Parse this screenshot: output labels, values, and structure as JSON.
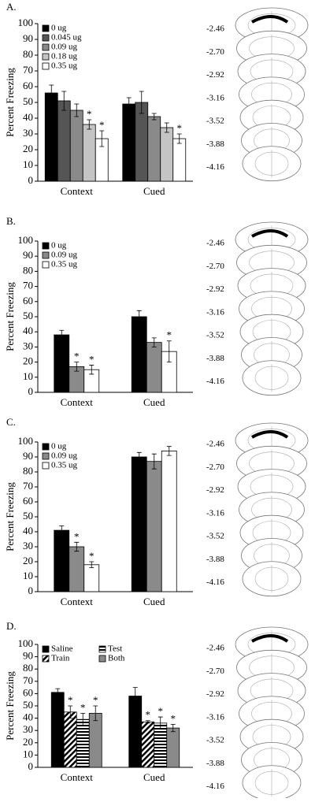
{
  "chart_data": [
    {
      "type": "bar",
      "panel_label": "A.",
      "ylabel": "Percent Freezing",
      "categories": [
        "Context",
        "Cued"
      ],
      "ylim": [
        0,
        100
      ],
      "yticks": [
        0,
        10,
        20,
        30,
        40,
        50,
        60,
        70,
        80,
        90,
        100
      ],
      "series": [
        {
          "name": "0 ug",
          "color": "#000000",
          "values": [
            56,
            49
          ],
          "errors": [
            5,
            4
          ]
        },
        {
          "name": "0.045 ug",
          "color": "#555555",
          "values": [
            51,
            50
          ],
          "errors": [
            6,
            7
          ]
        },
        {
          "name": "0.09 ug",
          "color": "#8a8a8a",
          "values": [
            45,
            41
          ],
          "errors": [
            4,
            2
          ]
        },
        {
          "name": "0.18 ug",
          "color": "#c4c4c4",
          "values": [
            36,
            34
          ],
          "errors": [
            3,
            3
          ],
          "annotations": [
            "*",
            null
          ]
        },
        {
          "name": "0.35 ug",
          "color": "#ffffff",
          "values": [
            27,
            27
          ],
          "errors": [
            5,
            3
          ],
          "annotations": [
            "*",
            "*"
          ]
        }
      ],
      "atlas_levels": [
        "-2.46",
        "-2.70",
        "-2.92",
        "-3.16",
        "-3.52",
        "-3.88",
        "-4.16"
      ]
    },
    {
      "type": "bar",
      "panel_label": "B.",
      "ylabel": "Percent Freezing",
      "categories": [
        "Context",
        "Cued"
      ],
      "ylim": [
        0,
        100
      ],
      "yticks": [
        0,
        10,
        20,
        30,
        40,
        50,
        60,
        70,
        80,
        90,
        100
      ],
      "series": [
        {
          "name": "0 ug",
          "color": "#000000",
          "values": [
            38,
            50
          ],
          "errors": [
            3,
            4
          ]
        },
        {
          "name": "0.09 ug",
          "color": "#8a8a8a",
          "values": [
            17,
            33
          ],
          "errors": [
            3,
            3
          ],
          "annotations": [
            "*",
            null
          ]
        },
        {
          "name": "0.35 ug",
          "color": "#ffffff",
          "values": [
            15,
            27
          ],
          "errors": [
            3,
            7
          ],
          "annotations": [
            "*",
            "*"
          ]
        }
      ],
      "atlas_levels": [
        "-2.46",
        "-2.70",
        "-2.92",
        "-3.16",
        "-3.52",
        "-3.88",
        "-4.16"
      ]
    },
    {
      "type": "bar",
      "panel_label": "C.",
      "ylabel": "Percent Freezing",
      "categories": [
        "Context",
        "Cued"
      ],
      "ylim": [
        0,
        100
      ],
      "yticks": [
        0,
        10,
        20,
        30,
        40,
        50,
        60,
        70,
        80,
        90,
        100
      ],
      "series": [
        {
          "name": "0 ug",
          "color": "#000000",
          "values": [
            41,
            90
          ],
          "errors": [
            3,
            3
          ]
        },
        {
          "name": "0.09 ug",
          "color": "#8a8a8a",
          "values": [
            30,
            87
          ],
          "errors": [
            3,
            5
          ],
          "annotations": [
            "*",
            null
          ]
        },
        {
          "name": "0.35 ug",
          "color": "#ffffff",
          "values": [
            18,
            94
          ],
          "errors": [
            2,
            3
          ],
          "annotations": [
            "*",
            null
          ]
        }
      ],
      "atlas_levels": [
        "-2.46",
        "-2.70",
        "-2.92",
        "-3.16",
        "-3.52",
        "-3.88",
        "-4.16"
      ]
    },
    {
      "type": "bar",
      "panel_label": "D.",
      "ylabel": "Percent Freezing",
      "categories": [
        "Context",
        "Cued"
      ],
      "ylim": [
        0,
        100
      ],
      "yticks": [
        0,
        10,
        20,
        30,
        40,
        50,
        60,
        70,
        80,
        90,
        100
      ],
      "legend_columns": 2,
      "series": [
        {
          "name": "Saline",
          "color": "#000000",
          "values": [
            61,
            58
          ],
          "errors": [
            3,
            7
          ]
        },
        {
          "name": "Train",
          "color": "#000000",
          "pattern": "diagonal",
          "values": [
            45,
            37
          ],
          "errors": [
            5,
            1
          ],
          "annotations": [
            "*",
            "*"
          ]
        },
        {
          "name": "Test",
          "color": "#000000",
          "pattern": "horizontal",
          "values": [
            39,
            36
          ],
          "errors": [
            5,
            5
          ],
          "annotations": [
            "*",
            "*"
          ]
        },
        {
          "name": "Both",
          "color": "#8a8a8a",
          "values": [
            44,
            32
          ],
          "errors": [
            6,
            3
          ],
          "annotations": [
            "*",
            "*"
          ]
        }
      ],
      "atlas_levels": [
        "-2.46",
        "-2.70",
        "-2.92",
        "-3.16",
        "-3.52",
        "-3.88",
        "-4.16"
      ]
    }
  ]
}
